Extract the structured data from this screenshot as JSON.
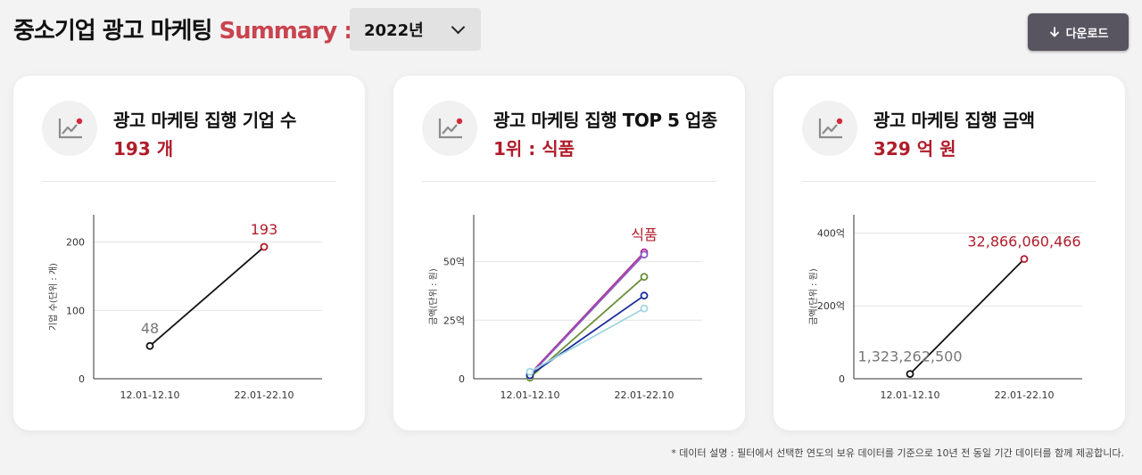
{
  "header": {
    "title_main": "중소기업 광고 마케팅",
    "title_accent": "Summary :",
    "year_selected": "2022년",
    "download_label": "다운로드"
  },
  "colors": {
    "accent": "#c9444e",
    "value_red": "#b01c2a",
    "button": "#585561"
  },
  "cards": [
    {
      "label": "광고 마케팅 집행 기업 수",
      "value": "193 개",
      "icon": "line-chart-icon",
      "ylabel": "기업 수(단위 : 개)",
      "start_label": "48",
      "end_label": "193"
    },
    {
      "label": "광고 마케팅 집행 TOP 5 업종",
      "value": "1위 : 식품",
      "icon": "line-chart-icon",
      "ylabel": "금액(단위 : 원)",
      "end_label": "식품"
    },
    {
      "label": "광고 마케팅 집행 금액",
      "value": "329 억 원",
      "icon": "line-chart-icon",
      "ylabel": "금액(단위 : 원)",
      "start_label": "1,323,262,500",
      "end_label": "32,866,060,466"
    }
  ],
  "note": "* 데이터 설명 : 필터에서 선택한 연도의 보유 데이터를 기준으로 10년 전 동일 기간 데이터를 함께 제공합니다.",
  "chart_data": [
    {
      "type": "line",
      "x": [
        "12.01-12.10",
        "22.01-22.10"
      ],
      "series": [
        {
          "values": [
            48,
            193
          ],
          "color": "#111111"
        }
      ],
      "ylabel": "기업 수(단위 : 개)",
      "yticks": [
        {
          "v": 0,
          "label": "0"
        },
        {
          "v": 100,
          "label": "100"
        },
        {
          "v": 200,
          "label": "200"
        }
      ],
      "ylim": [
        0,
        240
      ],
      "point_labels": [
        "48",
        "193"
      ]
    },
    {
      "type": "line",
      "x": [
        "12.01-12.10",
        "22.01-22.10"
      ],
      "series": [
        {
          "name": "식품",
          "values": [
            2.0,
            54.0
          ],
          "color": "#b0338d"
        },
        {
          "values": [
            1.5,
            53.0
          ],
          "color": "#8a5bc7"
        },
        {
          "values": [
            0.5,
            43.5
          ],
          "color": "#6b8f3a"
        },
        {
          "values": [
            1.5,
            35.5
          ],
          "color": "#1a2b9b"
        },
        {
          "values": [
            3.0,
            30.0
          ],
          "color": "#9fd6e0"
        }
      ],
      "ylabel": "금액(단위 : 원)",
      "yticks": [
        {
          "v": 0,
          "label": "0"
        },
        {
          "v": 25,
          "label": "25억"
        },
        {
          "v": 50,
          "label": "50억"
        }
      ],
      "ylim": [
        0,
        70
      ],
      "end_label": "식품"
    },
    {
      "type": "line",
      "x": [
        "12.01-12.10",
        "22.01-22.10"
      ],
      "series": [
        {
          "values": [
            1323262500,
            32866060466
          ],
          "color": "#111111"
        }
      ],
      "ylabel": "금액(단위 : 원)",
      "yticks": [
        {
          "v": 0,
          "label": "0"
        },
        {
          "v": 20000000000,
          "label": "200억"
        },
        {
          "v": 40000000000,
          "label": "400억"
        }
      ],
      "ylim": [
        0,
        45000000000
      ],
      "point_labels": [
        "1,323,262,500",
        "32,866,060,466"
      ]
    }
  ]
}
